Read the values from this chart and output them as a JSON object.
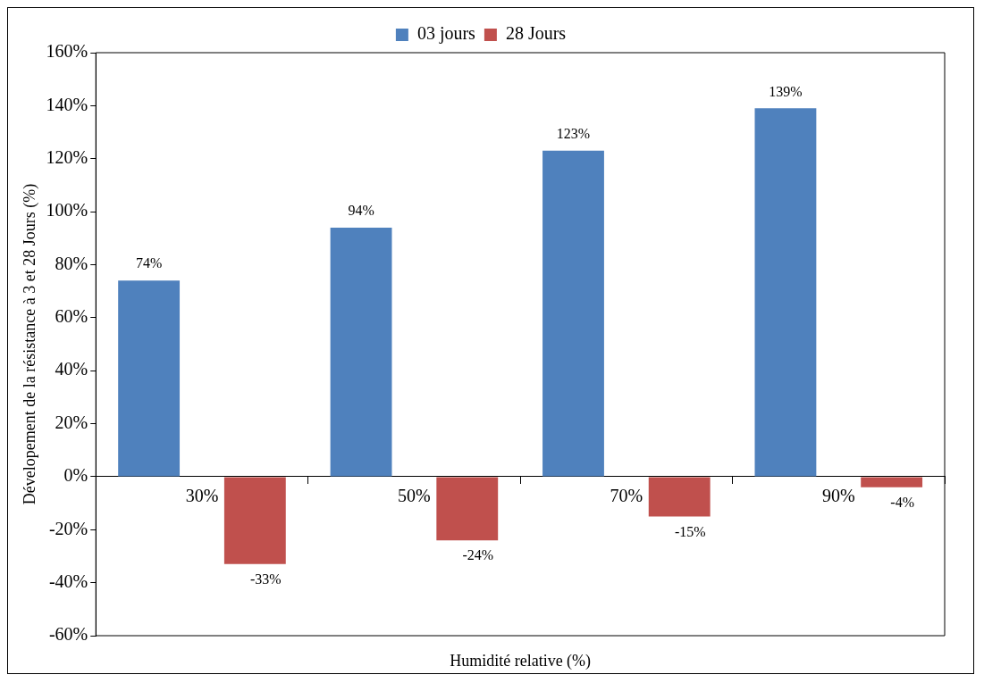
{
  "chart_data": {
    "type": "bar",
    "xlabel": "Humidité relative (%)",
    "ylabel": "Dévelopement de la résistance à 3 et 28 Jours (%)",
    "categories": [
      "30%",
      "50%",
      "70%",
      "90%"
    ],
    "series": [
      {
        "name": "03 jours",
        "color": "#4f81bd",
        "values": [
          74,
          94,
          123,
          139
        ],
        "value_labels": [
          "74%",
          "94%",
          "123%",
          "139%"
        ]
      },
      {
        "name": "28 Jours",
        "color": "#c0504d",
        "values": [
          -33,
          -24,
          -15,
          -4
        ],
        "value_labels": [
          "-33%",
          "-24%",
          "-15%",
          "-4%"
        ]
      }
    ],
    "ylim": [
      -60,
      160
    ],
    "yticks": [
      {
        "value": -60,
        "label": "-60%"
      },
      {
        "value": -40,
        "label": "-40%"
      },
      {
        "value": -20,
        "label": "-20%"
      },
      {
        "value": 0,
        "label": "0%"
      },
      {
        "value": 20,
        "label": "20%"
      },
      {
        "value": 40,
        "label": "40%"
      },
      {
        "value": 60,
        "label": "60%"
      },
      {
        "value": 80,
        "label": "80%"
      },
      {
        "value": 100,
        "label": "100%"
      },
      {
        "value": 120,
        "label": "120%"
      },
      {
        "value": 140,
        "label": "140%"
      },
      {
        "value": 160,
        "label": "160%"
      }
    ],
    "grid": false,
    "legend": "top"
  }
}
